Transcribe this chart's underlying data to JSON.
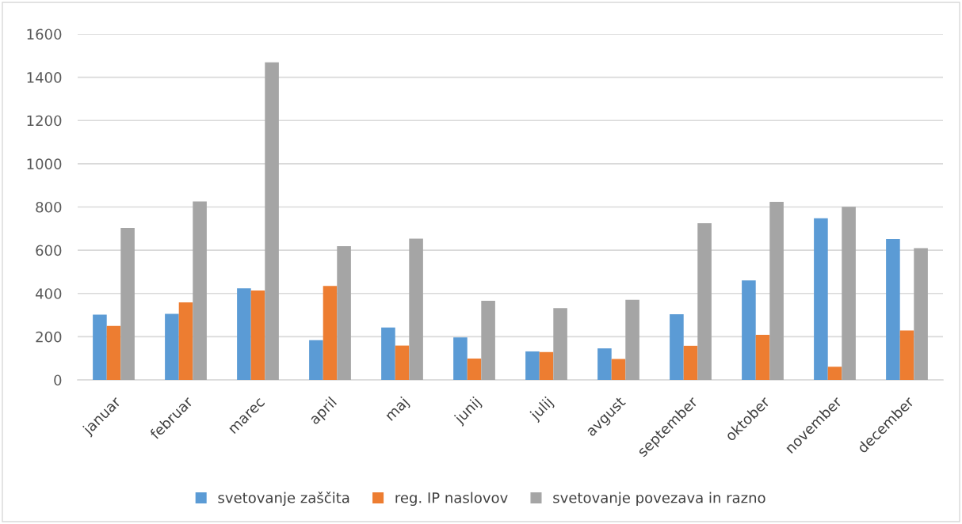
{
  "chart_data": {
    "type": "bar",
    "categories": [
      "januar",
      "februar",
      "marec",
      "april",
      "maj",
      "junij",
      "julij",
      "avgust",
      "september",
      "oktober",
      "november",
      "december"
    ],
    "series": [
      {
        "name": "svetovanje zaščita",
        "color": "#5b9bd5",
        "values": [
          302,
          306,
          424,
          184,
          243,
          197,
          132,
          146,
          304,
          460,
          748,
          652
        ]
      },
      {
        "name": "reg. IP naslovov",
        "color": "#ed7d31",
        "values": [
          250,
          359,
          414,
          435,
          159,
          99,
          129,
          97,
          158,
          209,
          61,
          229
        ]
      },
      {
        "name": "svetovanje povezava in razno",
        "color": "#a5a5a5",
        "values": [
          703,
          826,
          1469,
          619,
          654,
          366,
          332,
          371,
          725,
          824,
          801,
          610
        ]
      }
    ],
    "ylim": [
      0,
      1600
    ],
    "yticks": [
      0,
      200,
      400,
      600,
      800,
      1000,
      1200,
      1400,
      1600
    ],
    "grid": "y",
    "legend": "bottom"
  }
}
